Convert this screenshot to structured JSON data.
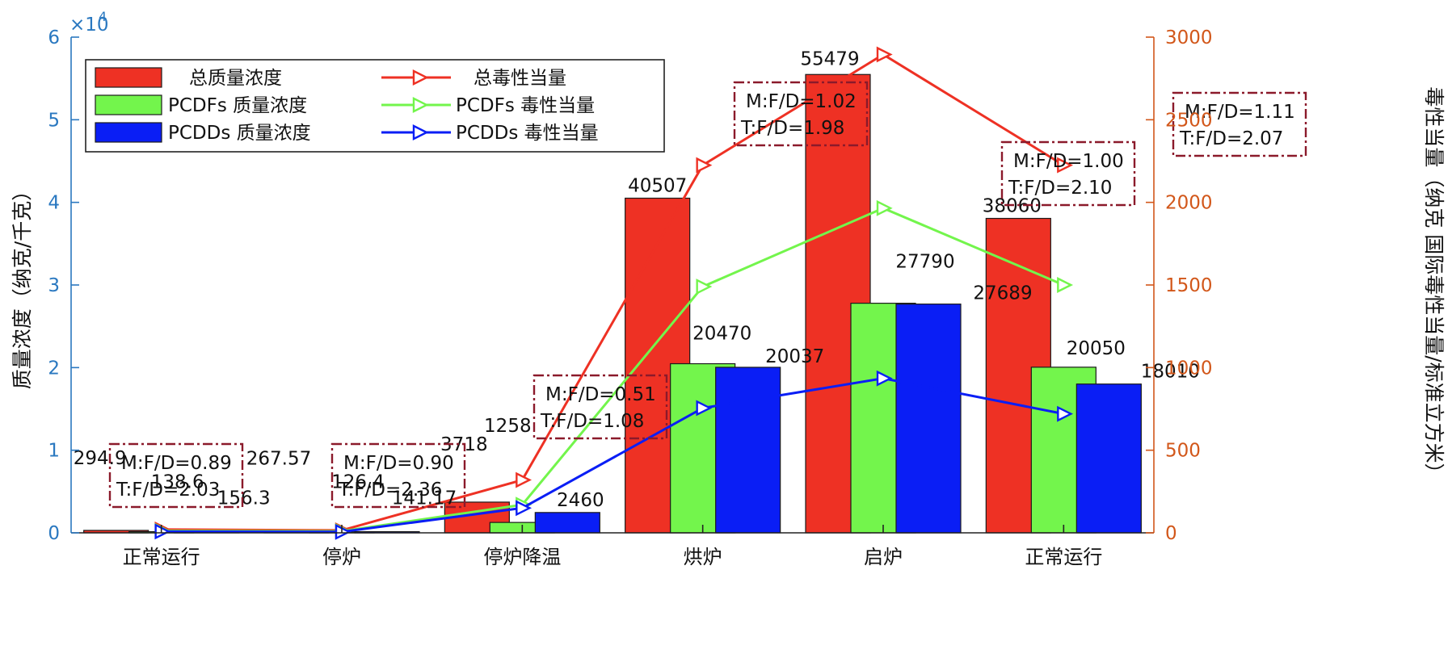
{
  "chart_data": {
    "type": "bar",
    "categories": [
      "正常运行",
      "停炉",
      "停炉降温",
      "烘炉",
      "启炉",
      "正常运行"
    ],
    "series": [
      {
        "name": "总质量浓度",
        "type": "bar",
        "axis": "left",
        "values": [
          294.9,
          267.57,
          3718,
          40507,
          55479,
          38060
        ],
        "labels": [
          "294.9",
          "267.57",
          "3718",
          "40507",
          "55479",
          "38060"
        ]
      },
      {
        "name": "PCDFs 质量浓度",
        "type": "bar",
        "axis": "left",
        "values": [
          138.6,
          126.4,
          1258,
          20470,
          27790,
          20050
        ],
        "labels": [
          "138.6",
          "126.4",
          "1258",
          "20470",
          "27790",
          "20050"
        ]
      },
      {
        "name": "PCDDs 质量浓度",
        "type": "bar",
        "axis": "left",
        "values": [
          156.3,
          141.17,
          2460,
          20037,
          27689,
          18010
        ],
        "labels": [
          "156.3",
          "141.17",
          "2460",
          "20037",
          "27689",
          "18010"
        ]
      },
      {
        "name": "总毒性当量",
        "type": "line",
        "axis": "right",
        "values": [
          20,
          15,
          320,
          2225,
          2895,
          2225
        ]
      },
      {
        "name": "PCDFs 毒性当量",
        "type": "line",
        "axis": "right",
        "values": [
          12,
          10,
          170,
          1490,
          1965,
          1500
        ]
      },
      {
        "name": "PCDDs 毒性当量",
        "type": "line",
        "axis": "right",
        "values": [
          8,
          6,
          150,
          755,
          935,
          720
        ]
      }
    ],
    "ratios": [
      {
        "m": "M:F/D=0.89",
        "t": "T:F/D=2.03"
      },
      {
        "m": "M:F/D=0.90",
        "t": "T:F/D=2.36"
      },
      {
        "m": "M:F/D=0.51",
        "t": "T:F/D=1.08"
      },
      {
        "m": "M:F/D=1.02",
        "t": "T:F/D=1.98"
      },
      {
        "m": "M:F/D=1.00",
        "t": "T:F/D=2.10"
      },
      {
        "m": "M:F/D=1.11",
        "t": "T:F/D=2.07"
      }
    ],
    "ylabel": "质量浓度（纳克/千克）",
    "y2label": "毒性当量（纳克 国际毒性当量/标准立方米）",
    "ylim": [
      0,
      60000
    ],
    "y2lim": [
      0,
      3000
    ],
    "yticks": [
      "0",
      "1",
      "2",
      "3",
      "4",
      "5",
      "6"
    ],
    "y_multiplier": "×10",
    "y_multiplier_exp": "4",
    "y2ticks": [
      "0",
      "500",
      "1000",
      "1500",
      "2000",
      "2500",
      "3000"
    ],
    "legend_position": "top-left",
    "grid": false,
    "colors": {
      "total": "#ee3124",
      "pcdfs": "#73f54c",
      "pcdds": "#0a1ef5",
      "left_axis": "#2a78c0",
      "right_axis": "#d2571a",
      "ratio_box": "#8b1a2b"
    }
  }
}
